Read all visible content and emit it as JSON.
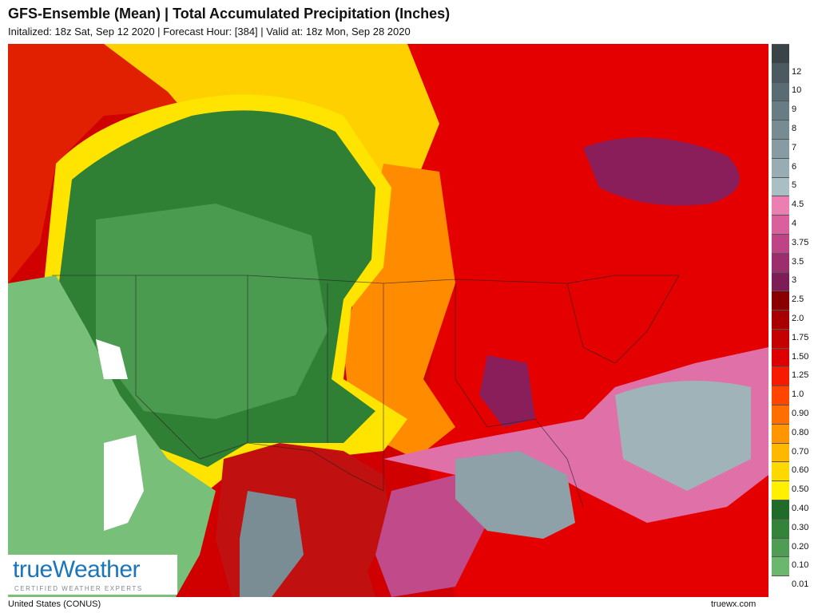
{
  "header": {
    "title": "GFS-Ensemble (Mean) | Total Accumulated Precipitation (Inches)",
    "subtitle": "Initalized: 18z Sat, Sep 12 2020 | Forecast Hour: [384] | Valid at: 18z Mon, Sep 28 2020"
  },
  "legend": [
    {
      "label": "12",
      "color": "#4b5a60"
    },
    {
      "label": "10",
      "color": "#5a6c73"
    },
    {
      "label": "9",
      "color": "#687c83"
    },
    {
      "label": "8",
      "color": "#778b92"
    },
    {
      "label": "7",
      "color": "#879ba2"
    },
    {
      "label": "6",
      "color": "#98adb3"
    },
    {
      "label": "5",
      "color": "#aabfc4"
    },
    {
      "label": "4.5",
      "color": "#ec7fb2"
    },
    {
      "label": "4",
      "color": "#d9609c"
    },
    {
      "label": "3.75",
      "color": "#bd4586"
    },
    {
      "label": "3.5",
      "color": "#9c2e6e"
    },
    {
      "label": "3",
      "color": "#7d1d57"
    },
    {
      "label": "2.5",
      "color": "#8a0000"
    },
    {
      "label": "2.0",
      "color": "#a80000"
    },
    {
      "label": "1.75",
      "color": "#c40000"
    },
    {
      "label": "1.50",
      "color": "#de0000"
    },
    {
      "label": "1.25",
      "color": "#f51a00"
    },
    {
      "label": "1.0",
      "color": "#ff4600"
    },
    {
      "label": "0.90",
      "color": "#ff6e00"
    },
    {
      "label": "0.80",
      "color": "#ff9600"
    },
    {
      "label": "0.70",
      "color": "#ffb800"
    },
    {
      "label": "0.60",
      "color": "#ffd800"
    },
    {
      "label": "0.50",
      "color": "#fff000"
    },
    {
      "label": "0.40",
      "color": "#1f6b28"
    },
    {
      "label": "0.30",
      "color": "#33833a"
    },
    {
      "label": "0.20",
      "color": "#4f9d54"
    },
    {
      "label": "0.10",
      "color": "#6cb76e"
    },
    {
      "label": "0.01",
      "color": "#ffffff"
    }
  ],
  "logo": {
    "name": "trueWeather",
    "tagline": "CERTIFIED WEATHER EXPERTS"
  },
  "footer": {
    "region": "United States (CONUS)",
    "site": "truewx.com"
  }
}
